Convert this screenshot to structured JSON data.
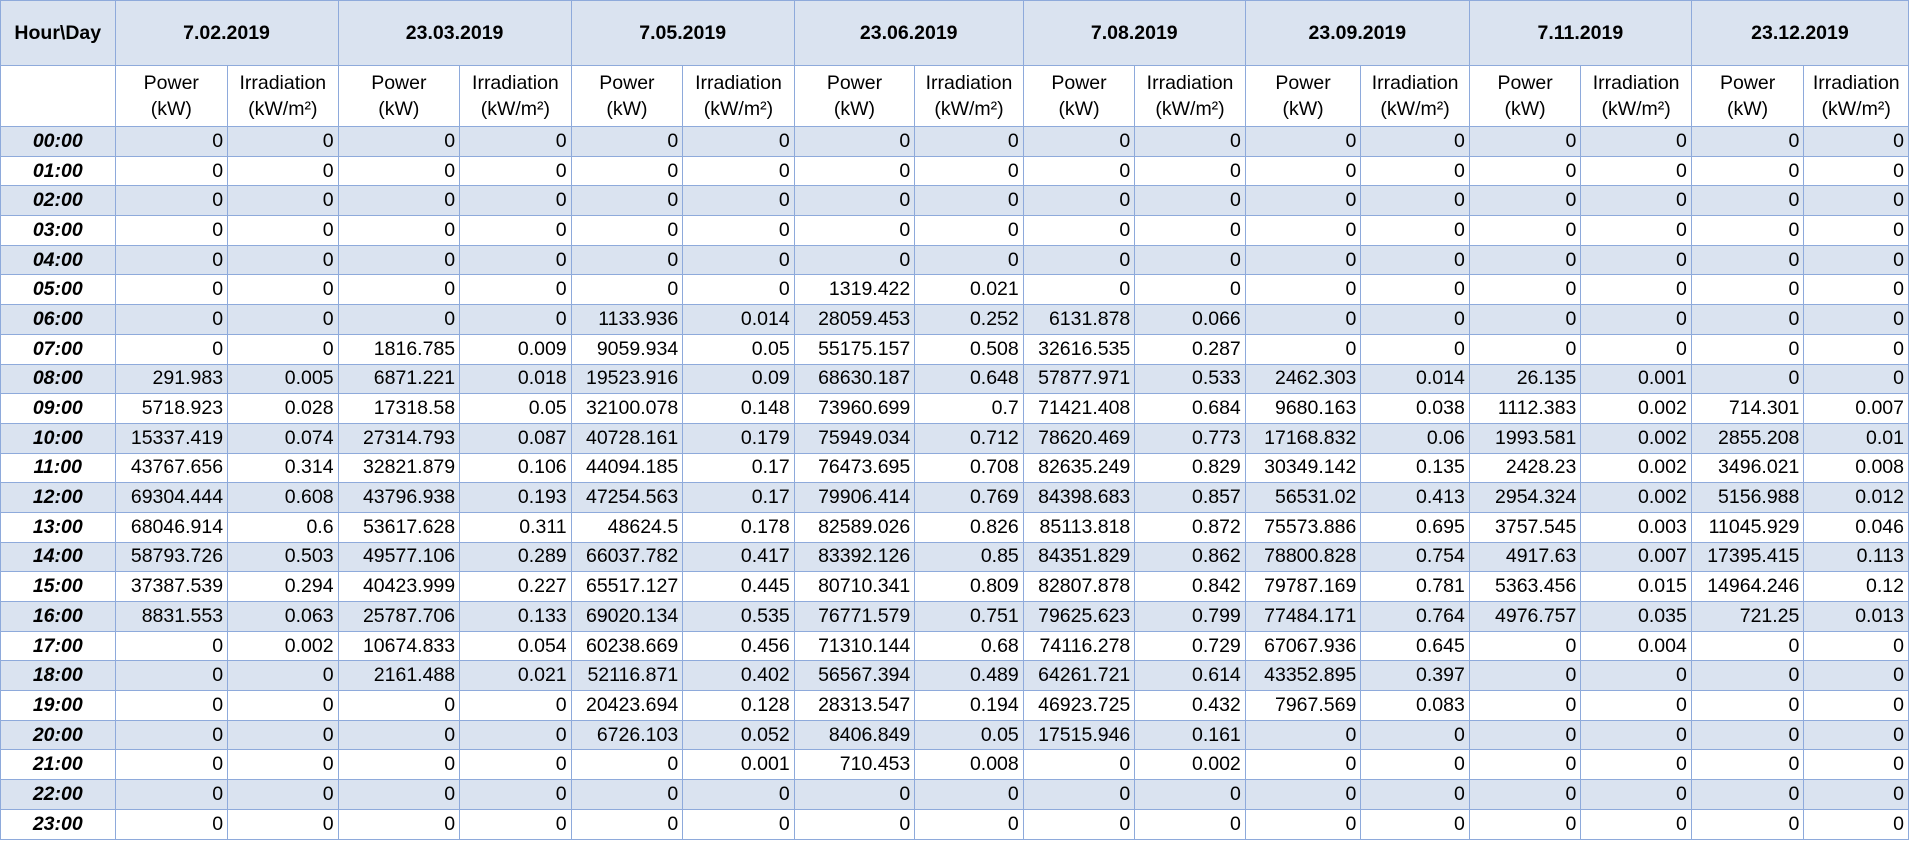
{
  "corner_label": "Hour\\Day",
  "dates": [
    "7.02.2019",
    "23.03.2019",
    "7.05.2019",
    "23.06.2019",
    "7.08.2019",
    "23.09.2019",
    "7.11.2019",
    "23.12.2019"
  ],
  "sub_headers": {
    "power_line1": "Power",
    "power_line2": "(kW)",
    "irr_line1": "Irradiation",
    "irr_line2": "(kW/m²)"
  },
  "colors": {
    "header_fill": "#dae3f0",
    "border": "#8eaadb"
  },
  "rows": [
    {
      "hour": "00:00",
      "values": [
        "0",
        "0",
        "0",
        "0",
        "0",
        "0",
        "0",
        "0",
        "0",
        "0",
        "0",
        "0",
        "0",
        "0",
        "0",
        "0"
      ]
    },
    {
      "hour": "01:00",
      "values": [
        "0",
        "0",
        "0",
        "0",
        "0",
        "0",
        "0",
        "0",
        "0",
        "0",
        "0",
        "0",
        "0",
        "0",
        "0",
        "0"
      ]
    },
    {
      "hour": "02:00",
      "values": [
        "0",
        "0",
        "0",
        "0",
        "0",
        "0",
        "0",
        "0",
        "0",
        "0",
        "0",
        "0",
        "0",
        "0",
        "0",
        "0"
      ]
    },
    {
      "hour": "03:00",
      "values": [
        "0",
        "0",
        "0",
        "0",
        "0",
        "0",
        "0",
        "0",
        "0",
        "0",
        "0",
        "0",
        "0",
        "0",
        "0",
        "0"
      ]
    },
    {
      "hour": "04:00",
      "values": [
        "0",
        "0",
        "0",
        "0",
        "0",
        "0",
        "0",
        "0",
        "0",
        "0",
        "0",
        "0",
        "0",
        "0",
        "0",
        "0"
      ]
    },
    {
      "hour": "05:00",
      "values": [
        "0",
        "0",
        "0",
        "0",
        "0",
        "0",
        "1319.422",
        "0.021",
        "0",
        "0",
        "0",
        "0",
        "0",
        "0",
        "0",
        "0"
      ]
    },
    {
      "hour": "06:00",
      "values": [
        "0",
        "0",
        "0",
        "0",
        "1133.936",
        "0.014",
        "28059.453",
        "0.252",
        "6131.878",
        "0.066",
        "0",
        "0",
        "0",
        "0",
        "0",
        "0"
      ]
    },
    {
      "hour": "07:00",
      "values": [
        "0",
        "0",
        "1816.785",
        "0.009",
        "9059.934",
        "0.05",
        "55175.157",
        "0.508",
        "32616.535",
        "0.287",
        "0",
        "0",
        "0",
        "0",
        "0",
        "0"
      ]
    },
    {
      "hour": "08:00",
      "values": [
        "291.983",
        "0.005",
        "6871.221",
        "0.018",
        "19523.916",
        "0.09",
        "68630.187",
        "0.648",
        "57877.971",
        "0.533",
        "2462.303",
        "0.014",
        "26.135",
        "0.001",
        "0",
        "0"
      ]
    },
    {
      "hour": "09:00",
      "values": [
        "5718.923",
        "0.028",
        "17318.58",
        "0.05",
        "32100.078",
        "0.148",
        "73960.699",
        "0.7",
        "71421.408",
        "0.684",
        "9680.163",
        "0.038",
        "1112.383",
        "0.002",
        "714.301",
        "0.007"
      ]
    },
    {
      "hour": "10:00",
      "values": [
        "15337.419",
        "0.074",
        "27314.793",
        "0.087",
        "40728.161",
        "0.179",
        "75949.034",
        "0.712",
        "78620.469",
        "0.773",
        "17168.832",
        "0.06",
        "1993.581",
        "0.002",
        "2855.208",
        "0.01"
      ]
    },
    {
      "hour": "11:00",
      "values": [
        "43767.656",
        "0.314",
        "32821.879",
        "0.106",
        "44094.185",
        "0.17",
        "76473.695",
        "0.708",
        "82635.249",
        "0.829",
        "30349.142",
        "0.135",
        "2428.23",
        "0.002",
        "3496.021",
        "0.008"
      ]
    },
    {
      "hour": "12:00",
      "values": [
        "69304.444",
        "0.608",
        "43796.938",
        "0.193",
        "47254.563",
        "0.17",
        "79906.414",
        "0.769",
        "84398.683",
        "0.857",
        "56531.02",
        "0.413",
        "2954.324",
        "0.002",
        "5156.988",
        "0.012"
      ]
    },
    {
      "hour": "13:00",
      "values": [
        "68046.914",
        "0.6",
        "53617.628",
        "0.311",
        "48624.5",
        "0.178",
        "82589.026",
        "0.826",
        "85113.818",
        "0.872",
        "75573.886",
        "0.695",
        "3757.545",
        "0.003",
        "11045.929",
        "0.046"
      ]
    },
    {
      "hour": "14:00",
      "values": [
        "58793.726",
        "0.503",
        "49577.106",
        "0.289",
        "66037.782",
        "0.417",
        "83392.126",
        "0.85",
        "84351.829",
        "0.862",
        "78800.828",
        "0.754",
        "4917.63",
        "0.007",
        "17395.415",
        "0.113"
      ]
    },
    {
      "hour": "15:00",
      "values": [
        "37387.539",
        "0.294",
        "40423.999",
        "0.227",
        "65517.127",
        "0.445",
        "80710.341",
        "0.809",
        "82807.878",
        "0.842",
        "79787.169",
        "0.781",
        "5363.456",
        "0.015",
        "14964.246",
        "0.12"
      ]
    },
    {
      "hour": "16:00",
      "values": [
        "8831.553",
        "0.063",
        "25787.706",
        "0.133",
        "69020.134",
        "0.535",
        "76771.579",
        "0.751",
        "79625.623",
        "0.799",
        "77484.171",
        "0.764",
        "4976.757",
        "0.035",
        "721.25",
        "0.013"
      ]
    },
    {
      "hour": "17:00",
      "values": [
        "0",
        "0.002",
        "10674.833",
        "0.054",
        "60238.669",
        "0.456",
        "71310.144",
        "0.68",
        "74116.278",
        "0.729",
        "67067.936",
        "0.645",
        "0",
        "0.004",
        "0",
        "0"
      ]
    },
    {
      "hour": "18:00",
      "values": [
        "0",
        "0",
        "2161.488",
        "0.021",
        "52116.871",
        "0.402",
        "56567.394",
        "0.489",
        "64261.721",
        "0.614",
        "43352.895",
        "0.397",
        "0",
        "0",
        "0",
        "0"
      ]
    },
    {
      "hour": "19:00",
      "values": [
        "0",
        "0",
        "0",
        "0",
        "20423.694",
        "0.128",
        "28313.547",
        "0.194",
        "46923.725",
        "0.432",
        "7967.569",
        "0.083",
        "0",
        "0",
        "0",
        "0"
      ]
    },
    {
      "hour": "20:00",
      "values": [
        "0",
        "0",
        "0",
        "0",
        "6726.103",
        "0.052",
        "8406.849",
        "0.05",
        "17515.946",
        "0.161",
        "0",
        "0",
        "0",
        "0",
        "0",
        "0"
      ]
    },
    {
      "hour": "21:00",
      "values": [
        "0",
        "0",
        "0",
        "0",
        "0",
        "0.001",
        "710.453",
        "0.008",
        "0",
        "0.002",
        "0",
        "0",
        "0",
        "0",
        "0",
        "0"
      ]
    },
    {
      "hour": "22:00",
      "values": [
        "0",
        "0",
        "0",
        "0",
        "0",
        "0",
        "0",
        "0",
        "0",
        "0",
        "0",
        "0",
        "0",
        "0",
        "0",
        "0"
      ]
    },
    {
      "hour": "23:00",
      "values": [
        "0",
        "0",
        "0",
        "0",
        "0",
        "0",
        "0",
        "0",
        "0",
        "0",
        "0",
        "0",
        "0",
        "0",
        "0",
        "0"
      ]
    }
  ]
}
